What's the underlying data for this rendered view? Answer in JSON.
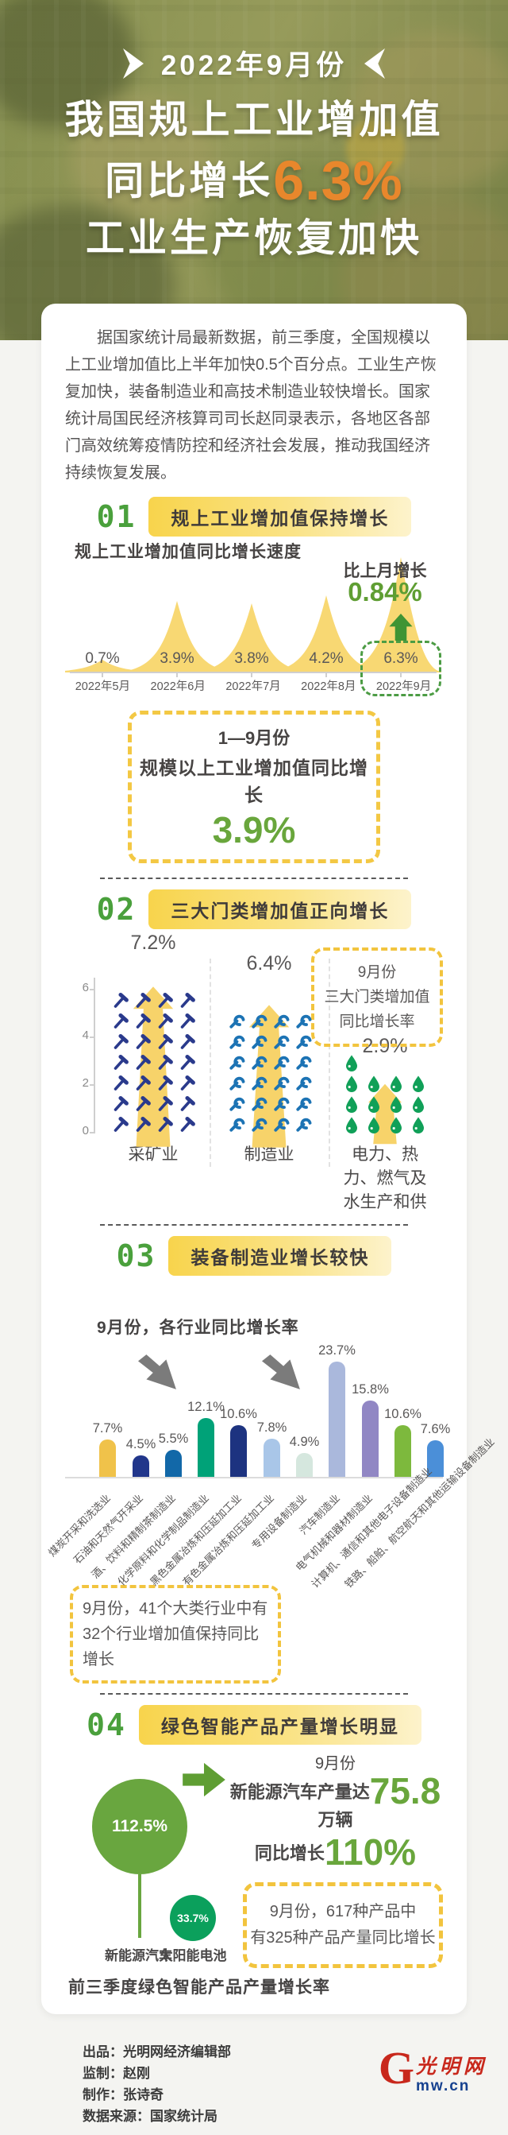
{
  "header": {
    "badge": "2022年9月份",
    "title_line1": "我国规上工业增加值",
    "title_line2_prefix": "同比增长",
    "title_line2_value": "6.3%",
    "title_line3": "工业生产恢复加快"
  },
  "intro": "据国家统计局最新数据，前三季度，全国规模以上工业增加值比上半年加快0.5个百分点。工业生产恢复加快，装备制造业和高技术制造业较快增长。国家统计局国民经济核算司司长赵同录表示，各地区各部门高效统筹疫情防控和经济社会发展，推动我国经济持续恢复发展。",
  "sections": [
    {
      "num": "01",
      "title": "规上工业增加值保持增长"
    },
    {
      "num": "02",
      "title": "三大门类增加值正向增长"
    },
    {
      "num": "03",
      "title": "装备制造业增长较快"
    },
    {
      "num": "04",
      "title": "绿色智能产品产量增长明显"
    }
  ],
  "chart1": {
    "title": "规上工业增加值同比增长速度",
    "annotation_label": "比上月增长",
    "annotation_value": "0.84%",
    "points": [
      {
        "month": "2022年5月",
        "value_label": "0.7%"
      },
      {
        "month": "2022年6月",
        "value_label": "3.9%"
      },
      {
        "month": "2022年7月",
        "value_label": "3.8%"
      },
      {
        "month": "2022年8月",
        "value_label": "4.2%"
      },
      {
        "month": "2022年9月",
        "value_label": "6.3%"
      }
    ]
  },
  "highlight_box1": {
    "line1": "1—9月份",
    "line2": "规模以上工业增加值同比增长",
    "value": "3.9%"
  },
  "chart2": {
    "y_ticks": [
      "6",
      "4",
      "2",
      "0"
    ],
    "note_lines": [
      "9月份",
      "三大门类增加值",
      "同比增长率"
    ],
    "categories": [
      {
        "label": "采矿业",
        "value_label": "7.2%"
      },
      {
        "label": "制造业",
        "value_label": "6.4%"
      },
      {
        "label": "电力、热力、燃气及水生产和供",
        "value_label": "2.9%"
      }
    ]
  },
  "chart3": {
    "subtitle": "9月份，各行业同比增长率",
    "bars": [
      {
        "label": "煤炭开采和洗选业",
        "value_label": "7.7%",
        "color": "#f0c24a"
      },
      {
        "label": "石油和天然气开采业",
        "value_label": "4.5%",
        "color": "#21368b"
      },
      {
        "label": "酒、饮料和精制茶制造业",
        "value_label": "5.5%",
        "color": "#1268a8"
      },
      {
        "label": "化学原料和化学制品制造业",
        "value_label": "12.1%",
        "color": "#00a278"
      },
      {
        "label": "黑色金属冶炼和压延加工业",
        "value_label": "10.6%",
        "color": "#1d3380"
      },
      {
        "label": "有色金属冶炼和压延加工业",
        "value_label": "7.8%",
        "color": "#a9c6e8"
      },
      {
        "label": "专用设备制造业",
        "value_label": "4.9%",
        "color": "#d5e7de"
      },
      {
        "label": "汽车制造业",
        "value_label": "23.7%",
        "color": "#aab8dc"
      },
      {
        "label": "电气机械和器材制造业",
        "value_label": "15.8%",
        "color": "#9187c4"
      },
      {
        "label": "计算机、通信和其他电子设备制造业",
        "value_label": "10.6%",
        "color": "#7db93d"
      },
      {
        "label": "铁路、船舶、航空航天和其他运输设备制造业",
        "value_label": "7.6%",
        "color": "#4b8fd8"
      }
    ]
  },
  "note_box2": {
    "text": "9月份，41个大类行业中有32个行业增加值保持同比增长"
  },
  "section4": {
    "lollipops": [
      {
        "label": "新能源汽车",
        "value_label": "112.5%"
      },
      {
        "label": "太阳能电池",
        "value_label": "33.7%"
      }
    ],
    "right_line1": "9月份",
    "right_line2_prefix": "新能源汽车产量达",
    "right_line2_value": "75.8",
    "right_line2_suffix": "万辆",
    "right_line3_prefix": "同比增长",
    "right_line3_value": "110%",
    "note_lines": [
      "9月份，617种产品中",
      "有325种产品产量同比增长"
    ],
    "caption": "前三季度绿色智能产品产量增长率"
  },
  "footer": {
    "lines": [
      "出品：光明网经济编辑部",
      "监制：赵刚",
      "制作：张诗奇",
      "数据来源：国家统计局"
    ],
    "logo_g": "G",
    "logo_cn": "光明网",
    "logo_domain": "mw.cn"
  },
  "colors": {
    "accent_orange": "#e8872c",
    "accent_green": "#5f9e33",
    "spike_yellow": "#f8d873",
    "arrow_yellow": "#f7d36a",
    "dashed_yellow": "#f2c43e",
    "section_green": "#4aa03c",
    "hammer_navy": "#2a3a8c",
    "wrench_blue": "#1c73b4",
    "droplet_green": "#10a058",
    "logo_red": "#c8281c",
    "logo_blue": "#16418f"
  },
  "chart_data": [
    {
      "type": "area",
      "title": "规上工业增加值同比增长速度",
      "categories": [
        "2022年5月",
        "2022年6月",
        "2022年7月",
        "2022年8月",
        "2022年9月"
      ],
      "values": [
        0.7,
        3.9,
        3.8,
        4.2,
        6.3
      ],
      "unit": "%",
      "annotation": "比上月增长0.84%"
    },
    {
      "type": "bar",
      "title": "9月份三大门类增加值同比增长率",
      "categories": [
        "采矿业",
        "制造业",
        "电力、热力、燃气及水生产和供"
      ],
      "values": [
        7.2,
        6.4,
        2.9
      ],
      "unit": "%",
      "ylim": [
        0,
        8
      ],
      "yticks": [
        0,
        2,
        4,
        6
      ]
    },
    {
      "type": "bar",
      "title": "9月份，各行业同比增长率",
      "categories": [
        "煤炭开采和洗选业",
        "石油和天然气开采业",
        "酒、饮料和精制茶制造业",
        "化学原料和化学制品制造业",
        "黑色金属冶炼和压延加工业",
        "有色金属冶炼和压延加工业",
        "专用设备制造业",
        "汽车制造业",
        "电气机械和器材制造业",
        "计算机、通信和其他电子设备制造业",
        "铁路、船舶、航空航天和其他运输设备制造业"
      ],
      "values": [
        7.7,
        4.5,
        5.5,
        12.1,
        10.6,
        7.8,
        4.9,
        23.7,
        15.8,
        10.6,
        7.6
      ],
      "unit": "%"
    },
    {
      "type": "bar",
      "title": "前三季度绿色智能产品产量增长率",
      "categories": [
        "新能源汽车",
        "太阳能电池"
      ],
      "values": [
        112.5,
        33.7
      ],
      "unit": "%"
    }
  ]
}
